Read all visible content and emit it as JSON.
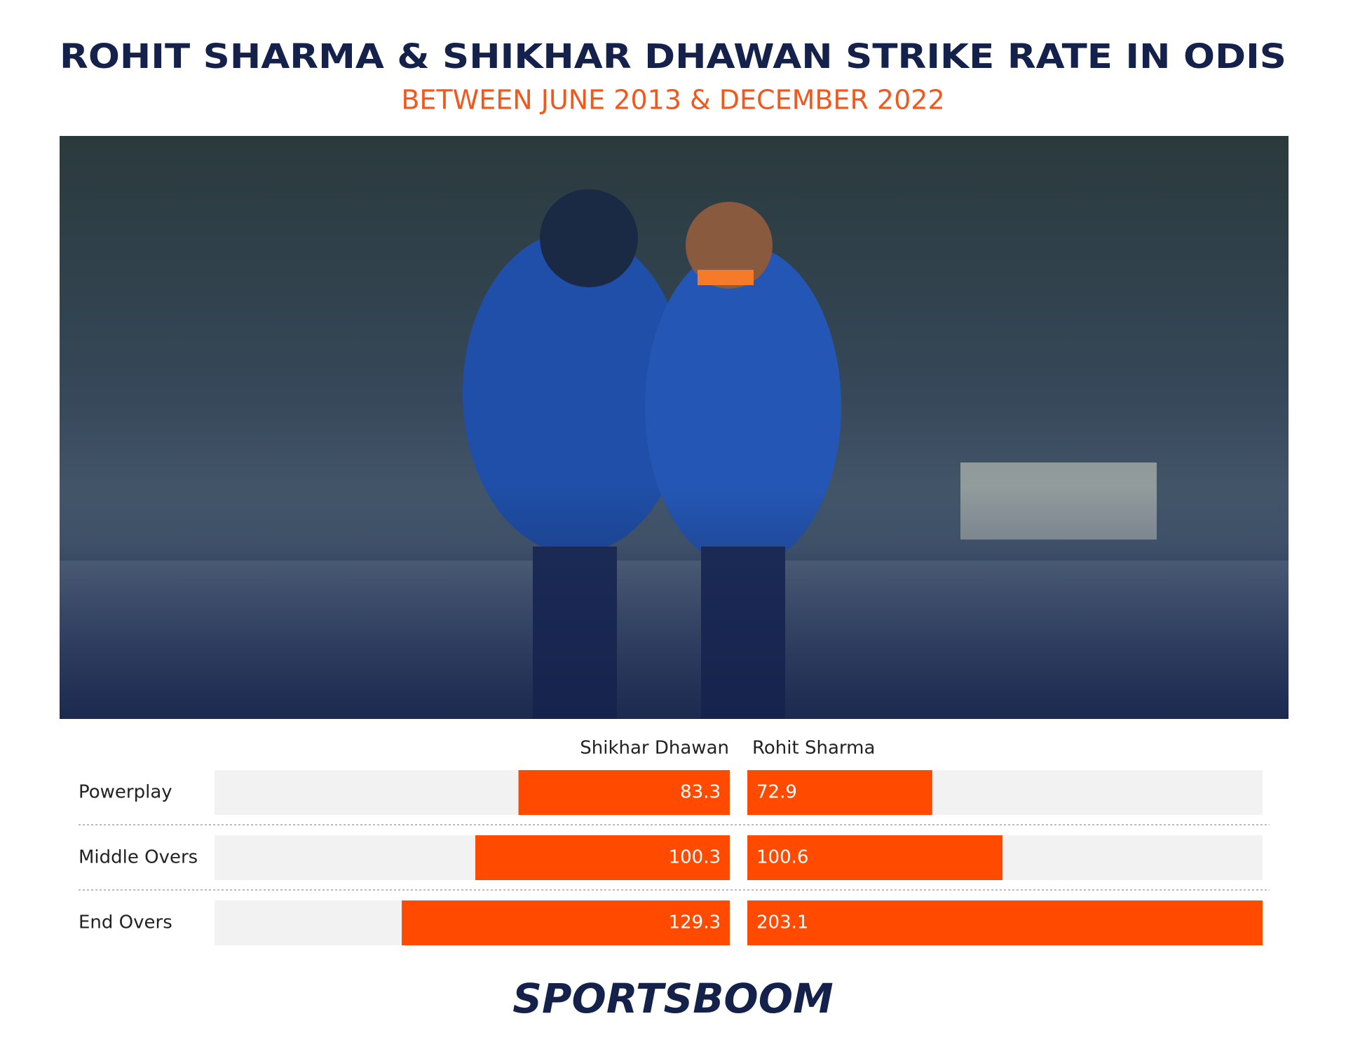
{
  "chart_data": {
    "type": "butterfly-bar",
    "title": "ROHIT SHARMA & SHIKHAR DHAWAN STRIKE RATE IN ODIS",
    "subtitle": "BETWEEN JUNE 2013 & DECEMBER 2022",
    "categories": [
      "Powerplay",
      "Middle Overs",
      "End Overs"
    ],
    "series": [
      {
        "name": "Shikhar Dhawan",
        "color": "#ff4a00",
        "values": [
          83.3,
          100.3,
          129.3
        ]
      },
      {
        "name": "Rohit Sharma",
        "color": "#ff4a00",
        "values": [
          72.9,
          100.6,
          203.1
        ]
      }
    ],
    "footer": "SPORTSBOOM"
  }
}
